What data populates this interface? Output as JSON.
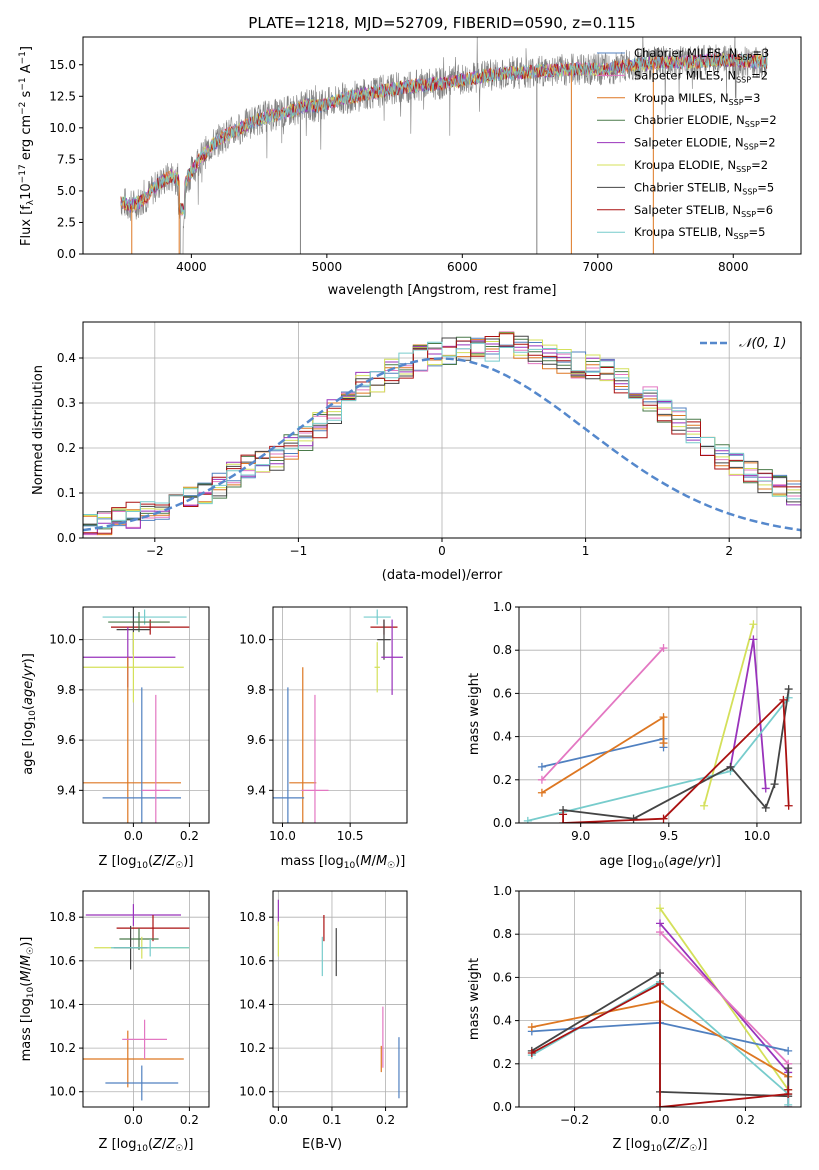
{
  "chart_data": [
    {
      "type": "line",
      "title": "PLATE=1218, MJD=52709, FIBERID=0590, z=0.115",
      "xlabel": "wavelength [Angstrom, rest frame]",
      "ylabel": "Flux [f_λ 10^-17 erg cm^-2 s^-1 A^-1]",
      "xlim": [
        3200,
        8500
      ],
      "ylim": [
        0,
        17.2
      ],
      "xticks": [
        4000,
        5000,
        6000,
        7000,
        8000
      ],
      "yticks": [
        0.0,
        2.5,
        5.0,
        7.5,
        10.0,
        12.5,
        15.0
      ],
      "grid": false,
      "legend": "top-right",
      "observed_spectrum": {
        "x": [
          3480,
          3550,
          3650,
          3750,
          3850,
          3950,
          4050,
          4150,
          4250,
          4350,
          4450,
          4550,
          4650,
          4750,
          4850,
          4950,
          5100,
          5250,
          5400,
          5550,
          5700,
          5850,
          6000,
          6150,
          6300,
          6450,
          6600,
          6750,
          6900,
          7050,
          7200,
          7350,
          7500,
          7650,
          7800,
          7950,
          8100,
          8250
        ],
        "y": [
          4.2,
          3.8,
          4.3,
          5.5,
          6.2,
          5.6,
          7.4,
          8.6,
          9.4,
          9.9,
          10.5,
          10.9,
          11.1,
          11.4,
          11.8,
          11.7,
          12.3,
          12.6,
          12.9,
          13.2,
          13.4,
          13.5,
          13.8,
          14.1,
          14.3,
          14.4,
          14.5,
          14.6,
          14.7,
          14.6,
          14.9,
          15.1,
          15.2,
          15.2,
          15.3,
          15.4,
          15.3,
          15.2
        ]
      },
      "series": [
        {
          "name": "Chabrier MILES, N_SSP=3",
          "color": "#5080c0"
        },
        {
          "name": "Salpeter MILES, N_SSP=2",
          "color": "#e377c2"
        },
        {
          "name": "Kroupa MILES, N_SSP=3",
          "color": "#dd7722"
        },
        {
          "name": "Chabrier ELODIE, N_SSP=2",
          "color": "#4a7a4a"
        },
        {
          "name": "Salpeter ELODIE, N_SSP=2",
          "color": "#9933bb"
        },
        {
          "name": "Kroupa ELODIE, N_SSP=2",
          "color": "#d4e05a"
        },
        {
          "name": "Chabrier STELIB, N_SSP=5",
          "color": "#444444"
        },
        {
          "name": "Salpeter STELIB, N_SSP=6",
          "color": "#aa1111"
        },
        {
          "name": "Kroupa STELIB, N_SSP=5",
          "color": "#77cccc"
        }
      ],
      "legend_entries": [
        {
          "label": "Chabrier MILES, ",
          "sub_label": "N",
          "sub": "SSP",
          "suffix": "=3"
        },
        {
          "label": "Salpeter MILES, ",
          "sub_label": "N",
          "sub": "SSP",
          "suffix": "=2"
        },
        {
          "label": "Kroupa MILES, ",
          "sub_label": "N",
          "sub": "SSP",
          "suffix": "=3"
        },
        {
          "label": "Chabrier ELODIE, ",
          "sub_label": "N",
          "sub": "SSP",
          "suffix": "=2"
        },
        {
          "label": "Salpeter ELODIE, ",
          "sub_label": "N",
          "sub": "SSP",
          "suffix": "=2"
        },
        {
          "label": "Kroupa ELODIE, ",
          "sub_label": "N",
          "sub": "SSP",
          "suffix": "=2"
        },
        {
          "label": "Chabrier STELIB, ",
          "sub_label": "N",
          "sub": "SSP",
          "suffix": "=5"
        },
        {
          "label": "Salpeter STELIB, ",
          "sub_label": "N",
          "sub": "SSP",
          "suffix": "=6"
        },
        {
          "label": "Kroupa STELIB, ",
          "sub_label": "N",
          "sub": "SSP",
          "suffix": "=5"
        }
      ]
    },
    {
      "type": "histogram",
      "xlabel": "(data-model)/error",
      "ylabel": "Normed distribution",
      "xlim": [
        -2.5,
        2.5
      ],
      "ylim": [
        0,
        0.48
      ],
      "xticks": [
        -2,
        -1,
        0,
        1,
        2
      ],
      "yticks": [
        0.0,
        0.1,
        0.2,
        0.3,
        0.4
      ],
      "grid": true,
      "legend": "top-right",
      "reference_curve": {
        "label": "𝒩(0, 1)",
        "mean": 0,
        "sigma": 1,
        "color": "#5588cc"
      },
      "bin_width": 0.1,
      "mean_profile": [
        0.03,
        0.035,
        0.045,
        0.05,
        0.06,
        0.07,
        0.08,
        0.09,
        0.1,
        0.115,
        0.14,
        0.155,
        0.165,
        0.18,
        0.2,
        0.22,
        0.25,
        0.28,
        0.31,
        0.34,
        0.35,
        0.37,
        0.385,
        0.4,
        0.41,
        0.415,
        0.42,
        0.415,
        0.42,
        0.43,
        0.425,
        0.415,
        0.4,
        0.39,
        0.385,
        0.38,
        0.37,
        0.35,
        0.33,
        0.31,
        0.28,
        0.26,
        0.24,
        0.21,
        0.18,
        0.16,
        0.15,
        0.13,
        0.12,
        0.1,
        0.09
      ]
    },
    {
      "type": "scatter",
      "ylabel": "age  [log10(age/yr)]",
      "xlabel": "Z [log10(Z/Z☉)]",
      "xlim": [
        -0.18,
        0.27
      ],
      "ylim": [
        9.27,
        10.13
      ],
      "xticks": [
        0.0,
        0.2
      ],
      "yticks": [
        9.4,
        9.6,
        9.8,
        10.0
      ],
      "grid": true,
      "points": [
        {
          "x": 0.04,
          "y": 10.09,
          "xerr": 0.15,
          "yerr": 0.03,
          "color": "#77cccc"
        },
        {
          "x": 0.06,
          "y": 10.05,
          "xerr": 0.14,
          "yerr": 0.03,
          "color": "#aa1111"
        },
        {
          "x": 0.02,
          "y": 10.07,
          "xerr": 0.11,
          "yerr": 0.04,
          "color": "#4a7a4a"
        },
        {
          "x": 0.0,
          "y": 10.04,
          "xerr": 0.06,
          "yerr": 0.1,
          "color": "#444444"
        },
        {
          "x": -0.02,
          "y": 9.93,
          "xerr": 0.17,
          "yerr": 0.12,
          "color": "#9933bb"
        },
        {
          "x": 0.0,
          "y": 9.89,
          "xerr": 0.18,
          "yerr": 0.14,
          "color": "#d4e05a"
        },
        {
          "x": -0.02,
          "y": 9.43,
          "xerr": 0.19,
          "yerr": 0.5,
          "color": "#dd7722"
        },
        {
          "x": 0.03,
          "y": 9.37,
          "xerr": 0.14,
          "yerr": 0.44,
          "color": "#5080c0"
        },
        {
          "x": 0.08,
          "y": 9.4,
          "xerr": 0.05,
          "yerr": 0.38,
          "color": "#e377c2"
        }
      ]
    },
    {
      "type": "scatter",
      "xlabel": "mass [log10(M/M☉)]",
      "ylabel": "",
      "xlim": [
        9.93,
        10.92
      ],
      "ylim": [
        9.27,
        10.13
      ],
      "xticks": [
        10.0,
        10.5
      ],
      "yticks": [
        9.4,
        9.6,
        9.8,
        10.0
      ],
      "grid": true,
      "points": [
        {
          "x": 10.7,
          "y": 10.09,
          "xerr": 0.1,
          "yerr": 0.03,
          "color": "#77cccc"
        },
        {
          "x": 10.75,
          "y": 10.05,
          "xerr": 0.1,
          "yerr": 0.03,
          "color": "#aa1111"
        },
        {
          "x": 10.75,
          "y": 10.0,
          "xerr": 0.05,
          "yerr": 0.08,
          "color": "#444444"
        },
        {
          "x": 10.81,
          "y": 9.93,
          "xerr": 0.08,
          "yerr": 0.15,
          "color": "#9933bb"
        },
        {
          "x": 10.7,
          "y": 9.89,
          "xerr": 0.02,
          "yerr": 0.1,
          "color": "#d4e05a"
        },
        {
          "x": 10.15,
          "y": 9.43,
          "xerr": 0.1,
          "yerr": 0.46,
          "color": "#dd7722"
        },
        {
          "x": 10.04,
          "y": 9.37,
          "xerr": 0.12,
          "yerr": 0.44,
          "color": "#5080c0"
        },
        {
          "x": 10.24,
          "y": 9.4,
          "xerr": 0.1,
          "yerr": 0.38,
          "color": "#e377c2"
        }
      ]
    },
    {
      "type": "line",
      "xlabel": "age  [log10(age/yr)]",
      "ylabel": "mass weight",
      "xlim": [
        8.65,
        10.25
      ],
      "ylim": [
        0,
        1.0
      ],
      "xticks": [
        9.0,
        9.5,
        10.0
      ],
      "yticks": [
        0.0,
        0.2,
        0.4,
        0.6,
        0.8,
        1.0
      ],
      "grid": true,
      "series": [
        {
          "color": "#5080c0",
          "x": [
            8.78,
            9.47,
            9.47
          ],
          "y": [
            0.26,
            0.39,
            0.35
          ]
        },
        {
          "color": "#dd7722",
          "x": [
            8.78,
            9.47,
            9.47
          ],
          "y": [
            0.14,
            0.49,
            0.37
          ]
        },
        {
          "color": "#e377c2",
          "x": [
            8.78,
            9.47
          ],
          "y": [
            0.2,
            0.81
          ]
        },
        {
          "color": "#d4e05a",
          "x": [
            9.7,
            9.98
          ],
          "y": [
            0.08,
            0.92
          ]
        },
        {
          "color": "#9933bb",
          "x": [
            9.85,
            9.98,
            10.05
          ],
          "y": [
            0.26,
            0.85,
            0.16
          ]
        },
        {
          "color": "#77cccc",
          "x": [
            8.7,
            9.85,
            10.18
          ],
          "y": [
            0.01,
            0.24,
            0.58
          ]
        },
        {
          "color": "#444444",
          "x": [
            8.9,
            9.3,
            9.85,
            10.05,
            10.1,
            10.18
          ],
          "y": [
            0.06,
            0.02,
            0.26,
            0.07,
            0.18,
            0.62
          ]
        },
        {
          "color": "#aa1111",
          "x": [
            8.9,
            8.9,
            9.47,
            10.15,
            10.18
          ],
          "y": [
            0.04,
            0.0,
            0.02,
            0.57,
            0.08
          ]
        }
      ]
    },
    {
      "type": "scatter",
      "xlabel": "Z [log10(Z/Z☉)]",
      "ylabel": "mass [log10(M/M☉)]",
      "xlim": [
        -0.18,
        0.27
      ],
      "ylim": [
        9.93,
        10.92
      ],
      "xticks": [
        0.0,
        0.2
      ],
      "yticks": [
        10.0,
        10.2,
        10.4,
        10.6,
        10.8
      ],
      "grid": true,
      "points": [
        {
          "x": 0.0,
          "y": 10.81,
          "xerr": 0.17,
          "yerr": 0.05,
          "color": "#9933bb"
        },
        {
          "x": 0.07,
          "y": 10.75,
          "xerr": 0.13,
          "yerr": 0.06,
          "color": "#aa1111"
        },
        {
          "x": 0.02,
          "y": 10.7,
          "xerr": 0.07,
          "yerr": 0.05,
          "color": "#4a7a4a"
        },
        {
          "x": 0.03,
          "y": 10.66,
          "xerr": 0.17,
          "yerr": 0.05,
          "color": "#d4e05a"
        },
        {
          "x": -0.01,
          "y": 10.66,
          "xerr": 0.06,
          "yerr": 0.1,
          "color": "#444444"
        },
        {
          "x": 0.06,
          "y": 10.66,
          "xerr": 0.14,
          "yerr": 0.04,
          "color": "#77cccc"
        },
        {
          "x": -0.02,
          "y": 10.15,
          "xerr": 0.2,
          "yerr": 0.13,
          "color": "#dd7722"
        },
        {
          "x": 0.04,
          "y": 10.24,
          "xerr": 0.08,
          "yerr": 0.09,
          "color": "#e377c2"
        },
        {
          "x": 0.03,
          "y": 10.04,
          "xerr": 0.13,
          "yerr": 0.08,
          "color": "#5080c0"
        }
      ]
    },
    {
      "type": "scatter",
      "xlabel": "E(B-V)",
      "ylabel": "",
      "xlim": [
        -0.01,
        0.24
      ],
      "ylim": [
        9.93,
        10.92
      ],
      "xticks": [
        0.0,
        0.1,
        0.2
      ],
      "yticks": [
        10.0,
        10.2,
        10.4,
        10.6,
        10.8
      ],
      "grid": true,
      "points": [
        {
          "x": 0.0,
          "y": 10.82,
          "xerr": 0,
          "yerr": 0.06,
          "color": "#9933bb"
        },
        {
          "x": 0.0,
          "y": 10.7,
          "xerr": 0,
          "yerr": 0.08,
          "color": "#d4e05a"
        },
        {
          "x": 0.085,
          "y": 10.75,
          "xerr": 0,
          "yerr": 0.06,
          "color": "#aa1111"
        },
        {
          "x": 0.082,
          "y": 10.62,
          "xerr": 0,
          "yerr": 0.09,
          "color": "#77cccc"
        },
        {
          "x": 0.108,
          "y": 10.64,
          "xerr": 0,
          "yerr": 0.11,
          "color": "#444444"
        },
        {
          "x": 0.195,
          "y": 10.25,
          "xerr": 0,
          "yerr": 0.14,
          "color": "#e377c2"
        },
        {
          "x": 0.192,
          "y": 10.15,
          "xerr": 0,
          "yerr": 0.06,
          "color": "#dd7722"
        },
        {
          "x": 0.225,
          "y": 10.11,
          "xerr": 0,
          "yerr": 0.14,
          "color": "#5080c0"
        }
      ]
    },
    {
      "type": "line",
      "xlabel": "Z [log10(Z/Z☉)]",
      "ylabel": "mass weight",
      "xlim": [
        -0.33,
        0.33
      ],
      "ylim": [
        0,
        1.0
      ],
      "xticks": [
        -0.2,
        0.0,
        0.2
      ],
      "yticks": [
        0.0,
        0.2,
        0.4,
        0.6,
        0.8,
        1.0
      ],
      "grid": true,
      "series": [
        {
          "color": "#d4e05a",
          "x": [
            0.0,
            0.3,
            0.3
          ],
          "y": [
            0.92,
            0.08,
            0.0
          ]
        },
        {
          "color": "#9933bb",
          "x": [
            0.0,
            0.3,
            0.3
          ],
          "y": [
            0.85,
            0.16,
            0.0
          ]
        },
        {
          "color": "#e377c2",
          "x": [
            0.0,
            0.3,
            0.3
          ],
          "y": [
            0.81,
            0.2,
            0.0
          ]
        },
        {
          "color": "#5080c0",
          "x": [
            -0.3,
            0.0,
            0.3
          ],
          "y": [
            0.35,
            0.39,
            0.26
          ]
        },
        {
          "color": "#dd7722",
          "x": [
            -0.3,
            0.0,
            0.3
          ],
          "y": [
            0.37,
            0.49,
            0.14
          ]
        },
        {
          "color": "#444444",
          "x": [
            -0.3,
            0.0,
            0.0,
            0.3,
            0.3
          ],
          "y": [
            0.26,
            0.62,
            0.07,
            0.05,
            0.18
          ]
        },
        {
          "color": "#77cccc",
          "x": [
            -0.3,
            0.0,
            0.3,
            0.3
          ],
          "y": [
            0.24,
            0.58,
            0.06,
            0.01
          ]
        },
        {
          "color": "#aa1111",
          "x": [
            -0.3,
            0.0,
            0.0,
            0.3,
            0.3
          ],
          "y": [
            0.25,
            0.57,
            0.0,
            0.06,
            0.08
          ]
        }
      ]
    }
  ]
}
